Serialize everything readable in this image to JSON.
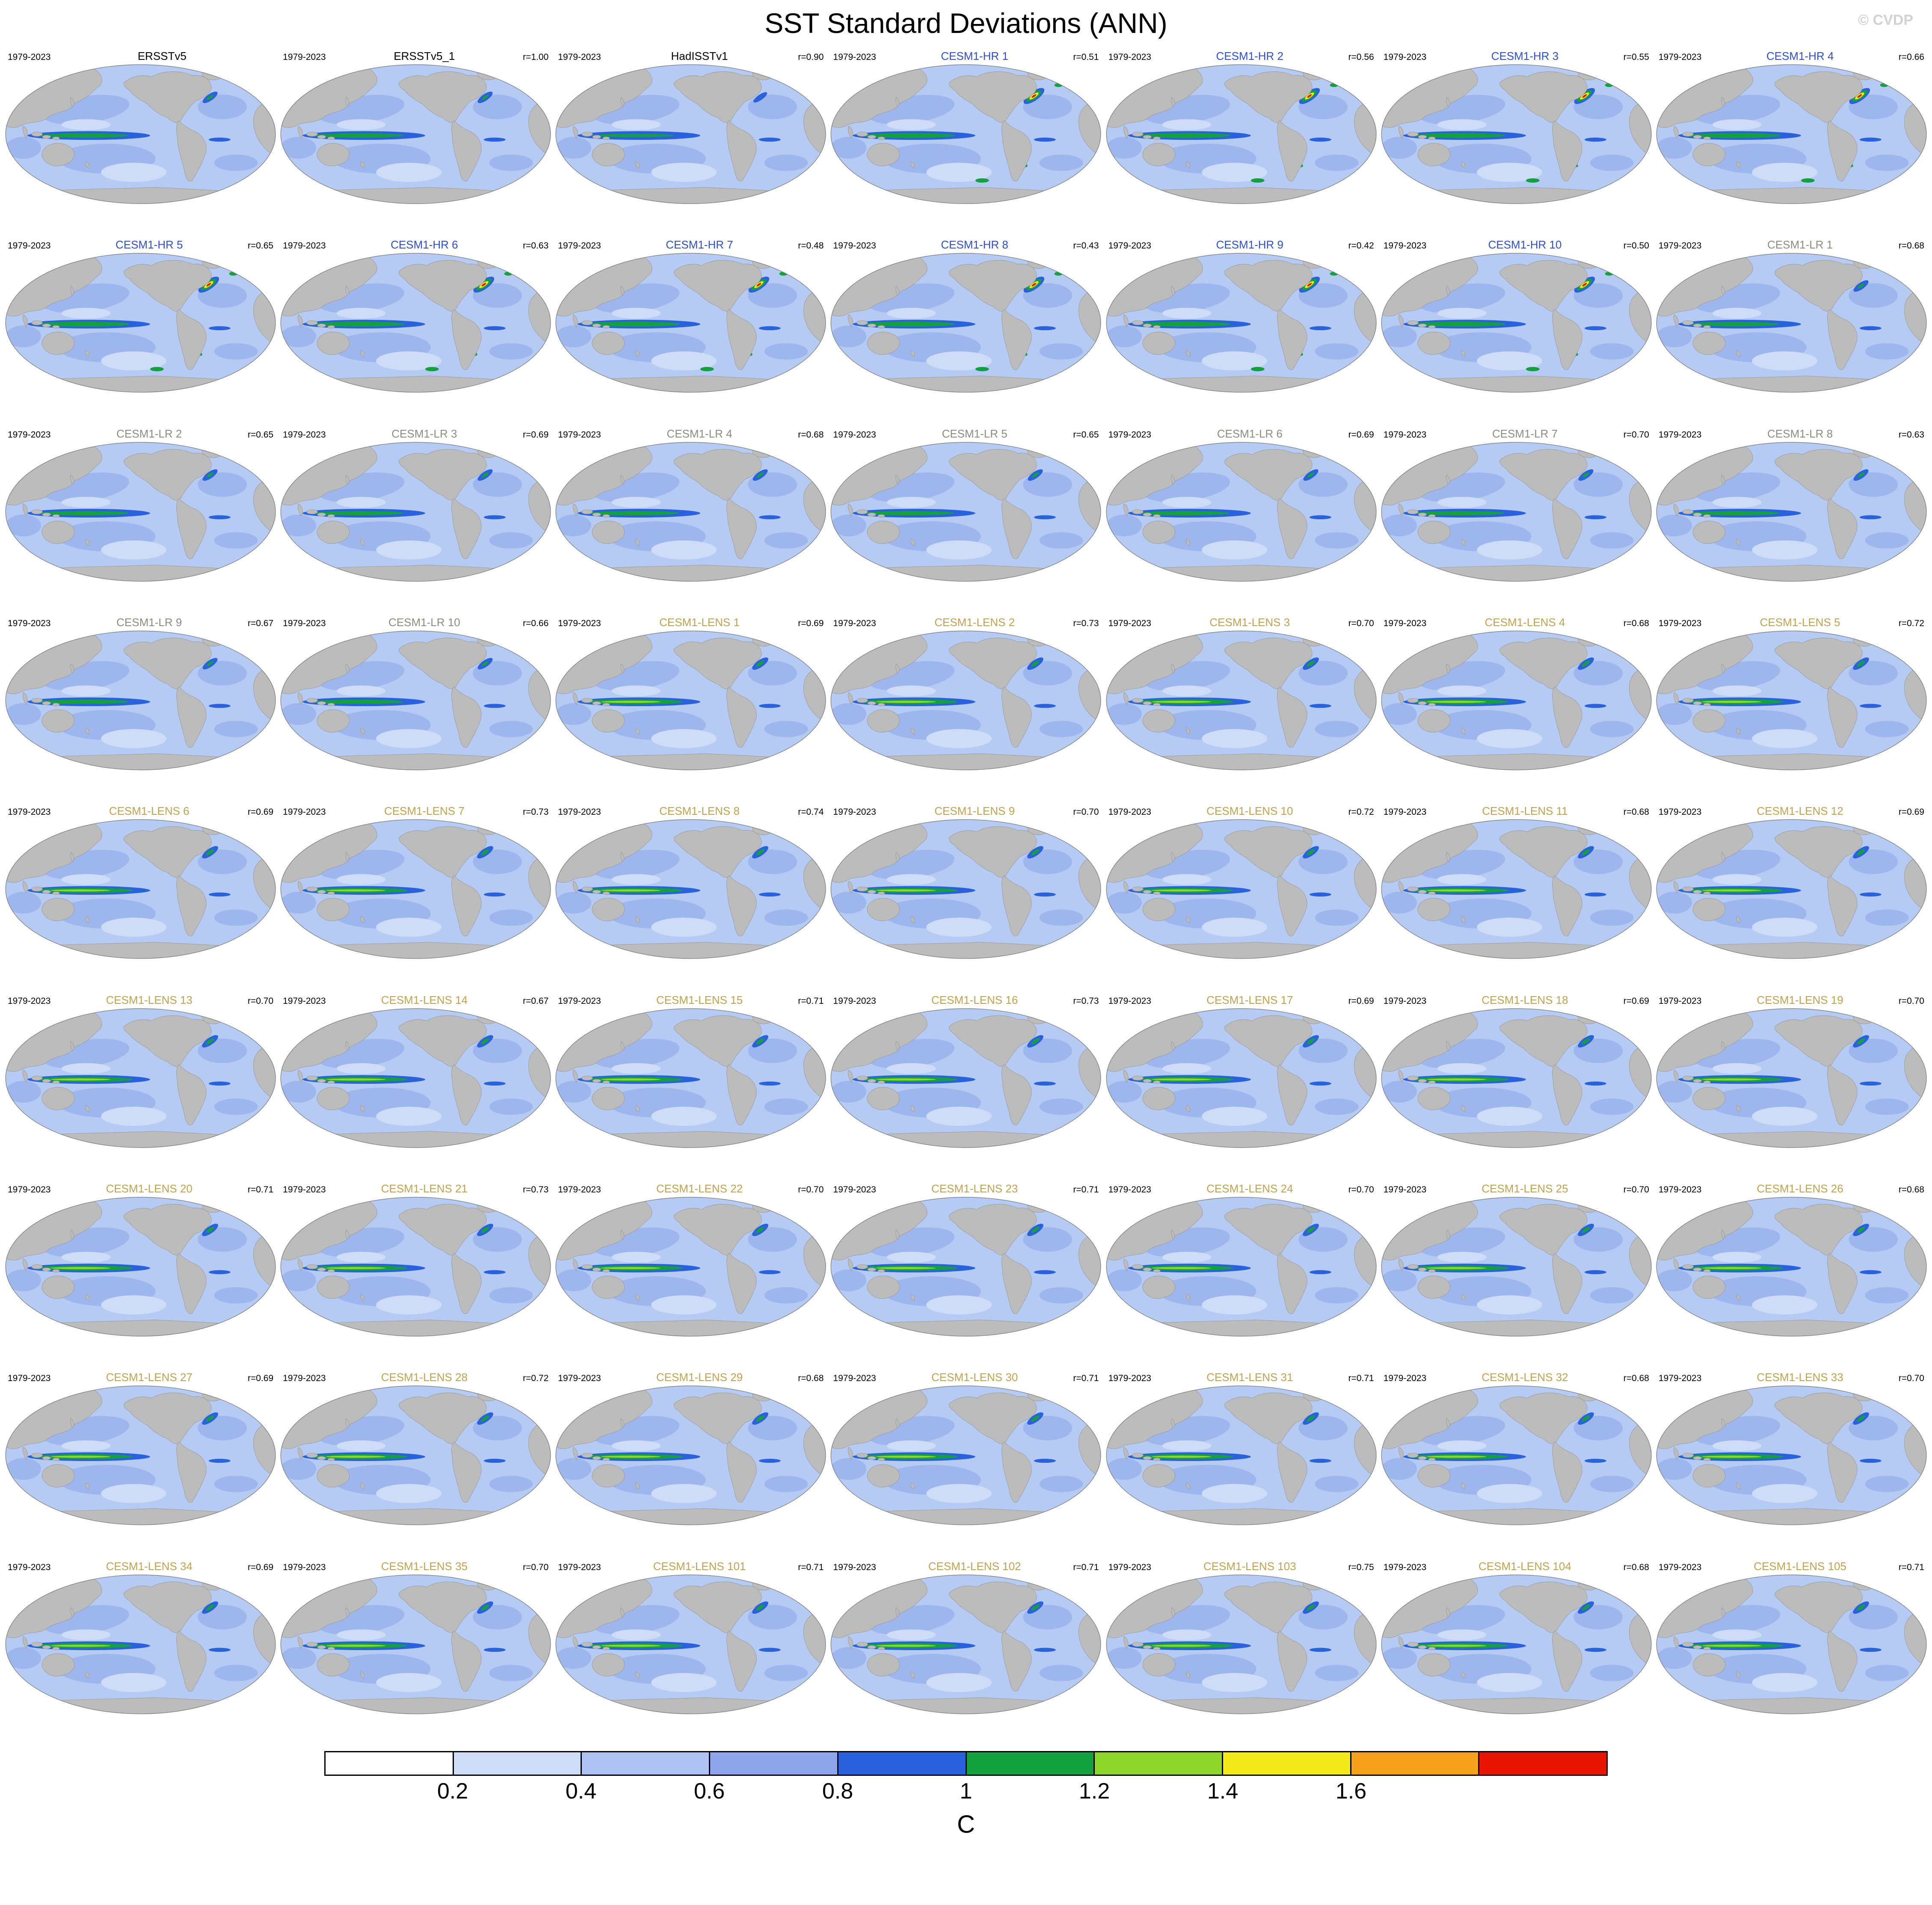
{
  "header": {
    "title": "SST Standard Deviations (ANN)",
    "watermark": "© CVDP"
  },
  "defaults": {
    "period": "1979-2023"
  },
  "group_colors": {
    "obs": "#000000",
    "had": "#000000",
    "hr": "#2f4fd0",
    "lr": "#8d8d7e",
    "lens": "#c3a24f"
  },
  "map_colors": {
    "ocean": "#b6cbf3",
    "ocean_dark": "#9db6ee",
    "ocean_pale": "#cfdcf8",
    "land": "#bcbcbc",
    "blue": "#2a62dd",
    "green": "#12a13e",
    "chartreuse": "#8ed62a",
    "yellow": "#f4ea1a",
    "orange": "#f5a11b",
    "red": "#e81500"
  },
  "panels": [
    {
      "name": "ERSSTv5",
      "r": "",
      "group": "obs"
    },
    {
      "name": "ERSSTv5_1",
      "r": "r=1.00",
      "group": "obs"
    },
    {
      "name": "HadISSTv1",
      "r": "r=0.90",
      "group": "had"
    },
    {
      "name": "CESM1-HR 1",
      "r": "r=0.51",
      "group": "hr"
    },
    {
      "name": "CESM1-HR 2",
      "r": "r=0.56",
      "group": "hr"
    },
    {
      "name": "CESM1-HR 3",
      "r": "r=0.55",
      "group": "hr"
    },
    {
      "name": "CESM1-HR 4",
      "r": "r=0.66",
      "group": "hr"
    },
    {
      "name": "CESM1-HR 5",
      "r": "r=0.65",
      "group": "hr"
    },
    {
      "name": "CESM1-HR 6",
      "r": "r=0.63",
      "group": "hr"
    },
    {
      "name": "CESM1-HR 7",
      "r": "r=0.48",
      "group": "hr"
    },
    {
      "name": "CESM1-HR 8",
      "r": "r=0.43",
      "group": "hr"
    },
    {
      "name": "CESM1-HR 9",
      "r": "r=0.42",
      "group": "hr"
    },
    {
      "name": "CESM1-HR 10",
      "r": "r=0.50",
      "group": "hr"
    },
    {
      "name": "CESM1-LR 1",
      "r": "r=0.68",
      "group": "lr"
    },
    {
      "name": "CESM1-LR 2",
      "r": "r=0.65",
      "group": "lr"
    },
    {
      "name": "CESM1-LR 3",
      "r": "r=0.69",
      "group": "lr"
    },
    {
      "name": "CESM1-LR 4",
      "r": "r=0.68",
      "group": "lr"
    },
    {
      "name": "CESM1-LR 5",
      "r": "r=0.65",
      "group": "lr"
    },
    {
      "name": "CESM1-LR 6",
      "r": "r=0.69",
      "group": "lr"
    },
    {
      "name": "CESM1-LR 7",
      "r": "r=0.70",
      "group": "lr"
    },
    {
      "name": "CESM1-LR 8",
      "r": "r=0.63",
      "group": "lr"
    },
    {
      "name": "CESM1-LR 9",
      "r": "r=0.67",
      "group": "lr"
    },
    {
      "name": "CESM1-LR 10",
      "r": "r=0.66",
      "group": "lr"
    },
    {
      "name": "CESM1-LENS 1",
      "r": "r=0.69",
      "group": "lens"
    },
    {
      "name": "CESM1-LENS 2",
      "r": "r=0.73",
      "group": "lens"
    },
    {
      "name": "CESM1-LENS 3",
      "r": "r=0.70",
      "group": "lens"
    },
    {
      "name": "CESM1-LENS 4",
      "r": "r=0.68",
      "group": "lens"
    },
    {
      "name": "CESM1-LENS 5",
      "r": "r=0.72",
      "group": "lens"
    },
    {
      "name": "CESM1-LENS 6",
      "r": "r=0.69",
      "group": "lens"
    },
    {
      "name": "CESM1-LENS 7",
      "r": "r=0.73",
      "group": "lens"
    },
    {
      "name": "CESM1-LENS 8",
      "r": "r=0.74",
      "group": "lens"
    },
    {
      "name": "CESM1-LENS 9",
      "r": "r=0.70",
      "group": "lens"
    },
    {
      "name": "CESM1-LENS 10",
      "r": "r=0.72",
      "group": "lens"
    },
    {
      "name": "CESM1-LENS 11",
      "r": "r=0.68",
      "group": "lens"
    },
    {
      "name": "CESM1-LENS 12",
      "r": "r=0.69",
      "group": "lens"
    },
    {
      "name": "CESM1-LENS 13",
      "r": "r=0.70",
      "group": "lens"
    },
    {
      "name": "CESM1-LENS 14",
      "r": "r=0.67",
      "group": "lens"
    },
    {
      "name": "CESM1-LENS 15",
      "r": "r=0.71",
      "group": "lens"
    },
    {
      "name": "CESM1-LENS 16",
      "r": "r=0.73",
      "group": "lens"
    },
    {
      "name": "CESM1-LENS 17",
      "r": "r=0.69",
      "group": "lens"
    },
    {
      "name": "CESM1-LENS 18",
      "r": "r=0.69",
      "group": "lens"
    },
    {
      "name": "CESM1-LENS 19",
      "r": "r=0.70",
      "group": "lens"
    },
    {
      "name": "CESM1-LENS 20",
      "r": "r=0.71",
      "group": "lens"
    },
    {
      "name": "CESM1-LENS 21",
      "r": "r=0.73",
      "group": "lens"
    },
    {
      "name": "CESM1-LENS 22",
      "r": "r=0.70",
      "group": "lens"
    },
    {
      "name": "CESM1-LENS 23",
      "r": "r=0.71",
      "group": "lens"
    },
    {
      "name": "CESM1-LENS 24",
      "r": "r=0.70",
      "group": "lens"
    },
    {
      "name": "CESM1-LENS 25",
      "r": "r=0.70",
      "group": "lens"
    },
    {
      "name": "CESM1-LENS 26",
      "r": "r=0.68",
      "group": "lens"
    },
    {
      "name": "CESM1-LENS 27",
      "r": "r=0.69",
      "group": "lens"
    },
    {
      "name": "CESM1-LENS 28",
      "r": "r=0.72",
      "group": "lens"
    },
    {
      "name": "CESM1-LENS 29",
      "r": "r=0.68",
      "group": "lens"
    },
    {
      "name": "CESM1-LENS 30",
      "r": "r=0.71",
      "group": "lens"
    },
    {
      "name": "CESM1-LENS 31",
      "r": "r=0.71",
      "group": "lens"
    },
    {
      "name": "CESM1-LENS 32",
      "r": "r=0.68",
      "group": "lens"
    },
    {
      "name": "CESM1-LENS 33",
      "r": "r=0.70",
      "group": "lens"
    },
    {
      "name": "CESM1-LENS 34",
      "r": "r=0.69",
      "group": "lens"
    },
    {
      "name": "CESM1-LENS 35",
      "r": "r=0.70",
      "group": "lens"
    },
    {
      "name": "CESM1-LENS 101",
      "r": "r=0.71",
      "group": "lens"
    },
    {
      "name": "CESM1-LENS 102",
      "r": "r=0.71",
      "group": "lens"
    },
    {
      "name": "CESM1-LENS 103",
      "r": "r=0.75",
      "group": "lens"
    },
    {
      "name": "CESM1-LENS 104",
      "r": "r=0.68",
      "group": "lens"
    },
    {
      "name": "CESM1-LENS 105",
      "r": "r=0.71",
      "group": "lens"
    }
  ],
  "colorbar": {
    "unit": "C",
    "ticks": [
      "0.2",
      "0.4",
      "0.6",
      "0.8",
      "1",
      "1.2",
      "1.4",
      "1.6"
    ],
    "colors": [
      "#ffffff",
      "#cfdcf8",
      "#aec2f1",
      "#8ea5ea",
      "#2a62dd",
      "#12a13e",
      "#8ed62a",
      "#f4ea1a",
      "#f5a11b",
      "#e81500"
    ]
  }
}
